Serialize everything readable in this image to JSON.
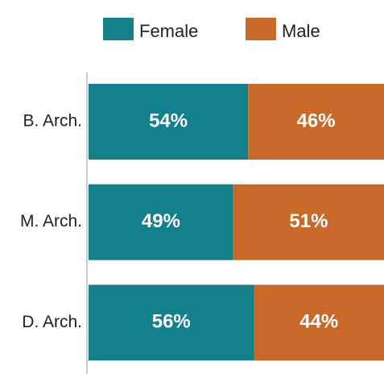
{
  "chart_data": {
    "type": "bar",
    "orientation": "horizontal",
    "stacked": "percent",
    "categories": [
      "B. Arch.",
      "M. Arch.",
      "D. Arch."
    ],
    "series": [
      {
        "name": "Female",
        "color": "#13808c",
        "values": [
          54,
          49,
          56
        ],
        "value_labels": [
          "54%",
          "49%",
          "56%"
        ]
      },
      {
        "name": "Male",
        "color": "#c8692a",
        "values": [
          46,
          51,
          44
        ],
        "value_labels": [
          "46%",
          "51%",
          "44%"
        ]
      }
    ],
    "legend": "top"
  }
}
